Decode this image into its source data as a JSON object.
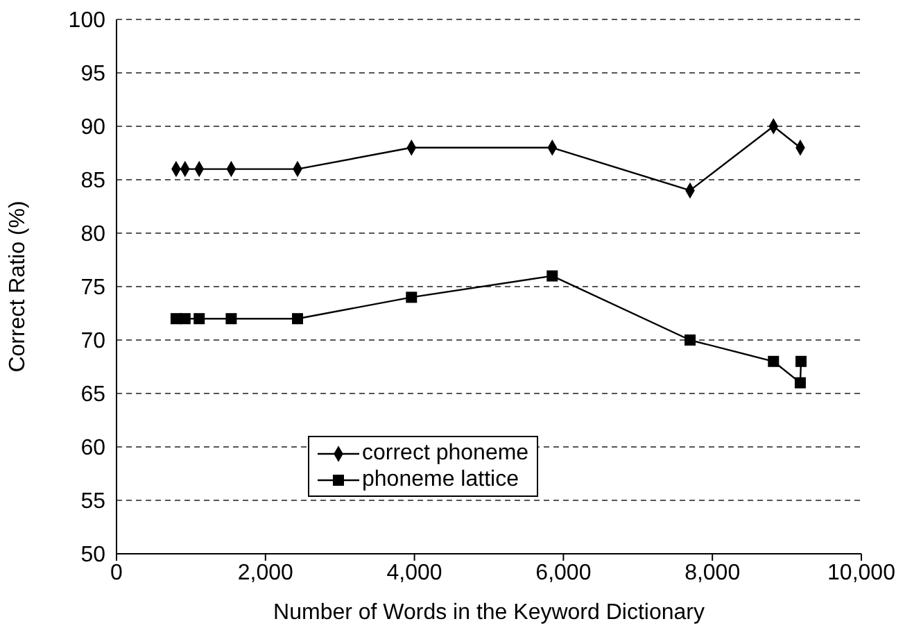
{
  "chart_data": {
    "type": "line",
    "xlabel": "Number of Words in the Keyword Dictionary",
    "ylabel": "Correct Ratio (%)",
    "series": [
      {
        "name": "correct phoneme",
        "color": "#000000",
        "marker": "diamond",
        "x": [
          800,
          920,
          1110,
          1540,
          2430,
          3960,
          5850,
          7700,
          8820,
          9180
        ],
        "values": [
          86,
          86,
          86,
          86,
          86,
          88,
          88,
          84,
          90,
          88
        ]
      },
      {
        "name": "phoneme lattice",
        "color": "#000000",
        "marker": "square",
        "x": [
          800,
          920,
          1110,
          1540,
          2430,
          3960,
          5850,
          7700,
          8820,
          9180,
          9190
        ],
        "values": [
          72,
          72,
          72,
          72,
          72,
          74,
          76,
          70,
          68,
          66,
          68
        ]
      }
    ],
    "xlim": [
      0,
      10000
    ],
    "xticks": [
      0,
      {
        "value": 2000,
        "label": "2,000"
      },
      {
        "value": 4000,
        "label": "4,000"
      },
      {
        "value": 6000,
        "label": "6,000"
      },
      {
        "value": 8000,
        "label": "8,000"
      },
      {
        "value": 10000,
        "label": "10,000"
      }
    ],
    "ylim": [
      50,
      100
    ],
    "yticks": [
      50,
      55,
      60,
      65,
      70,
      75,
      80,
      85,
      90,
      95,
      100
    ],
    "grid": "y",
    "legend": "bottom",
    "line_style": "solid"
  }
}
